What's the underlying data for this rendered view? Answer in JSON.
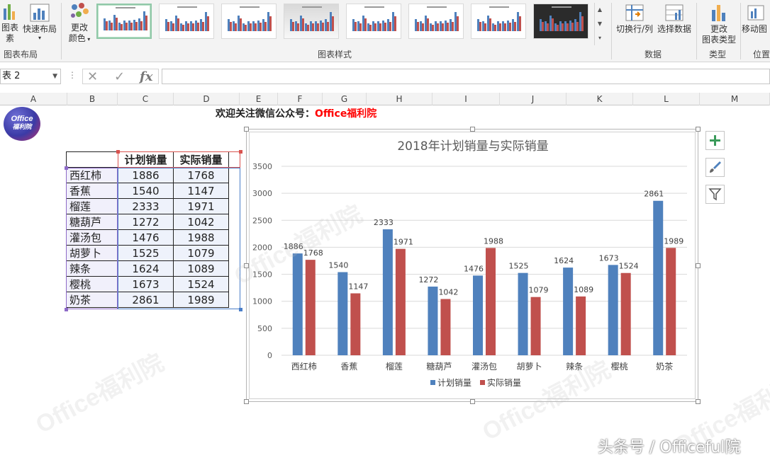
{
  "ribbon": {
    "btn_add_element": "添加图表元素",
    "btn_add_element_l1": "图表",
    "btn_add_element_l2": "素",
    "btn_quick_layout": "快速布局",
    "group_chart_layout": "图表布局",
    "btn_change_colors_l1": "更改",
    "btn_change_colors_l2": "颜色",
    "group_chart_styles": "图表样式",
    "btn_switch_row_col": "切换行/列",
    "btn_select_data": "选择数据",
    "group_data": "数据",
    "btn_change_type_l1": "更改",
    "btn_change_type_l2": "图表类型",
    "group_type": "类型",
    "btn_move_chart": "移动图",
    "group_location": "位置",
    "style_count": 8
  },
  "formula_bar": {
    "name_box": "表 2",
    "formula": ""
  },
  "columns": [
    "A",
    "B",
    "C",
    "D",
    "E",
    "F",
    "G",
    "H",
    "I",
    "J",
    "K",
    "L",
    "M"
  ],
  "logo": {
    "line1": "Office",
    "line2": "福利院"
  },
  "welcome": {
    "prefix": "欢迎关注微信公众号：",
    "brand": "Office福利院"
  },
  "table": {
    "headers": [
      "",
      "计划销量",
      "实际销量"
    ],
    "rows": [
      {
        "name": "西红柿",
        "plan": "1886",
        "actual": "1768"
      },
      {
        "name": "香蕉",
        "plan": "1540",
        "actual": "1147"
      },
      {
        "name": "榴莲",
        "plan": "2333",
        "actual": "1971"
      },
      {
        "name": "糖葫芦",
        "plan": "1272",
        "actual": "1042"
      },
      {
        "name": "灌汤包",
        "plan": "1476",
        "actual": "1988"
      },
      {
        "name": "胡萝卜",
        "plan": "1525",
        "actual": "1079"
      },
      {
        "name": "辣条",
        "plan": "1624",
        "actual": "1089"
      },
      {
        "name": "樱桃",
        "plan": "1673",
        "actual": "1524"
      },
      {
        "name": "奶茶",
        "plan": "2861",
        "actual": "1989"
      }
    ]
  },
  "chart_data": {
    "type": "bar",
    "title": "2018年计划销量与实际销量",
    "categories": [
      "西红柿",
      "香蕉",
      "榴莲",
      "糖葫芦",
      "灌汤包",
      "胡萝卜",
      "辣条",
      "樱桃",
      "奶茶"
    ],
    "series": [
      {
        "name": "计划销量",
        "color": "#4f81bd",
        "values": [
          1886,
          1540,
          2333,
          1272,
          1476,
          1525,
          1624,
          1673,
          2861
        ]
      },
      {
        "name": "实际销量",
        "color": "#c0504d",
        "values": [
          1768,
          1147,
          1971,
          1042,
          1988,
          1079,
          1089,
          1524,
          1989
        ]
      }
    ],
    "ylim": [
      0,
      3500
    ],
    "yticks": [
      0,
      500,
      1000,
      1500,
      2000,
      2500,
      3000,
      3500
    ],
    "grid": true,
    "data_labels": true,
    "legend": "bottom",
    "xlabel": "",
    "ylabel": ""
  },
  "side_buttons": [
    "plus-icon",
    "brush-icon",
    "filter-icon"
  ],
  "watermark": "Office福利院",
  "footer_watermark": "头条号 / Officeful院"
}
